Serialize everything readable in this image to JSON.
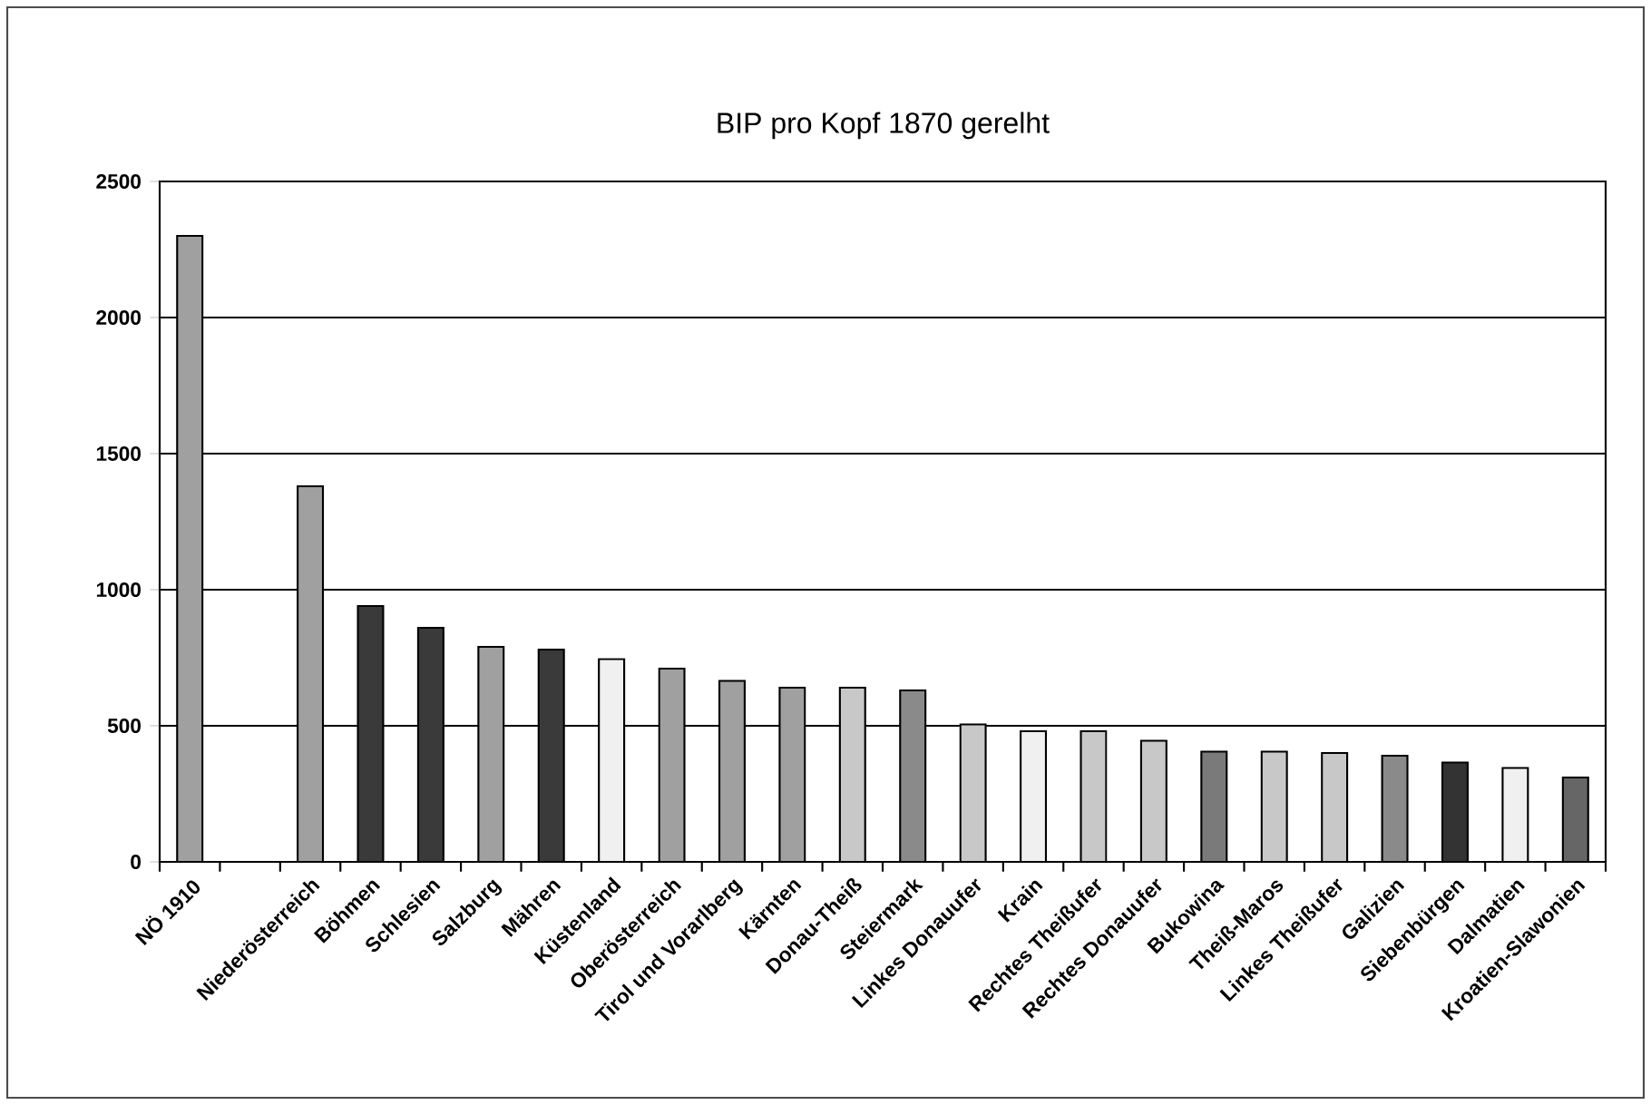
{
  "chart_data": {
    "type": "bar",
    "title": "BIP pro Kopf 1870 gerelht",
    "categories": [
      "NÖ 1910",
      null,
      "Niederösterreich",
      "Böhmen",
      "Schlesien",
      "Salzburg",
      "Mähren",
      "Küstenland",
      "Oberösterreich",
      "Tirol und Vorarlberg",
      "Kärnten",
      "Donau-Theiß",
      "Steiermark",
      "Linkes Donauufer",
      "Krain",
      "Rechtes Theißufer",
      "Rechtes Donauufer",
      "Bukowina",
      "Theiß-Maros",
      "Linkes Theißufer",
      "Galizien",
      "Siebenbürgen",
      "Dalmatien",
      "Kroatien-Slawonien"
    ],
    "values": [
      2300,
      null,
      1380,
      940,
      860,
      790,
      780,
      745,
      710,
      665,
      640,
      640,
      630,
      505,
      480,
      480,
      445,
      405,
      405,
      400,
      390,
      365,
      345,
      310
    ],
    "colors": [
      "#a0a0a0",
      null,
      "#a0a0a0",
      "#3a3a3a",
      "#3a3a3a",
      "#a0a0a0",
      "#3a3a3a",
      "#f0f0f0",
      "#a0a0a0",
      "#a0a0a0",
      "#a0a0a0",
      "#c8c8c8",
      "#8a8a8a",
      "#c8c8c8",
      "#f0f0f0",
      "#c8c8c8",
      "#c8c8c8",
      "#7a7a7a",
      "#c8c8c8",
      "#c8c8c8",
      "#8a8a8a",
      "#333333",
      "#f0f0f0",
      "#666666"
    ],
    "ylim": [
      0,
      2500
    ],
    "yticks": [
      0,
      500,
      1000,
      1500,
      2000,
      2500
    ],
    "grid": "y"
  }
}
